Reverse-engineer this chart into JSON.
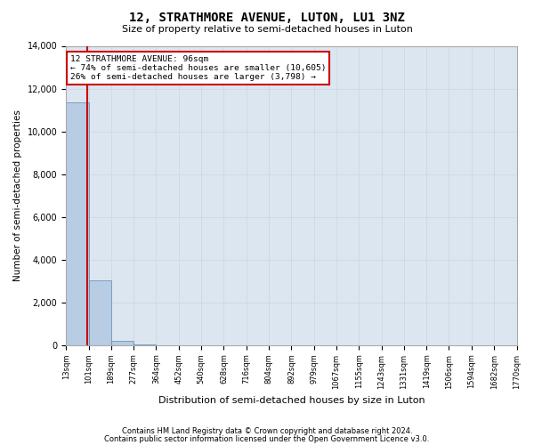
{
  "title": "12, STRATHMORE AVENUE, LUTON, LU1 3NZ",
  "subtitle": "Size of property relative to semi-detached houses in Luton",
  "xlabel": "Distribution of semi-detached houses by size in Luton",
  "ylabel": "Number of semi-detached properties",
  "annotation_line1": "12 STRATHMORE AVENUE: 96sqm",
  "annotation_line2": "← 74% of semi-detached houses are smaller (10,605)",
  "annotation_line3": "26% of semi-detached houses are larger (3,798) →",
  "bin_edges": [
    13,
    101,
    189,
    277,
    364,
    452,
    540,
    628,
    716,
    804,
    892,
    979,
    1067,
    1155,
    1243,
    1331,
    1419,
    1506,
    1594,
    1682,
    1770
  ],
  "bin_counts": [
    11350,
    3050,
    200,
    30,
    10,
    5,
    3,
    2,
    1,
    1,
    1,
    1,
    0,
    0,
    0,
    0,
    0,
    0,
    0,
    0
  ],
  "bar_color": "#b8cce4",
  "bar_edge_color": "#5a8ab0",
  "vline_color": "#cc0000",
  "vline_x": 96,
  "ylim": [
    0,
    14000
  ],
  "yticks": [
    0,
    2000,
    4000,
    6000,
    8000,
    10000,
    12000,
    14000
  ],
  "grid_color": "#d0d8e0",
  "bg_color": "#dce6f0",
  "footnote1": "Contains HM Land Registry data © Crown copyright and database right 2024.",
  "footnote2": "Contains public sector information licensed under the Open Government Licence v3.0."
}
